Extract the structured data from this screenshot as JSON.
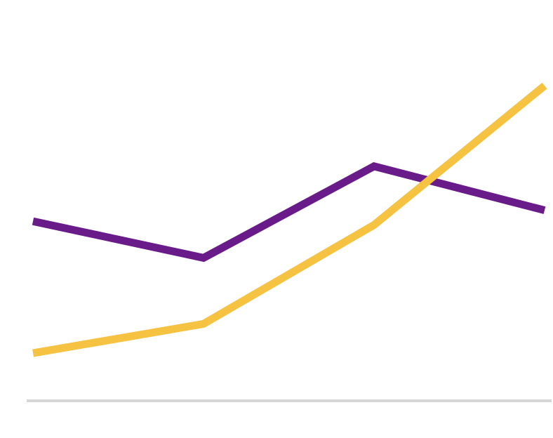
{
  "chart_data": {
    "type": "line",
    "title": "",
    "xlabel": "",
    "ylabel": "",
    "x": [
      1,
      2,
      3,
      4
    ],
    "xlim": [
      1,
      4
    ],
    "ylim": [
      0,
      100
    ],
    "grid": false,
    "legend": "none",
    "series": [
      {
        "values": [
          49,
          39,
          64,
          52
        ],
        "color": "#6a1b8a"
      },
      {
        "values": [
          13,
          21,
          48,
          86
        ],
        "color": "#f5c242"
      }
    ],
    "baseline_color": "#d6d6d6"
  }
}
